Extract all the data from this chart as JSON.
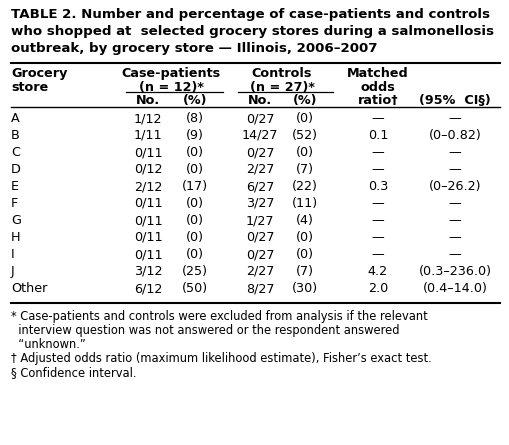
{
  "title_lines": [
    "TABLE 2. Number and percentage of case-patients and controls",
    "who shopped at  selected grocery stores during a salmonellosis",
    "outbreak, by grocery store — Illinois, 2006–2007"
  ],
  "rows": [
    [
      "A",
      "1/12",
      "(8)",
      "0/27",
      "(0)",
      "—",
      "—"
    ],
    [
      "B",
      "1/11",
      "(9)",
      "14/27",
      "(52)",
      "0.1",
      "(0–0.82)"
    ],
    [
      "C",
      "0/11",
      "(0)",
      "0/27",
      "(0)",
      "—",
      "—"
    ],
    [
      "D",
      "0/12",
      "(0)",
      "2/27",
      "(7)",
      "—",
      "—"
    ],
    [
      "E",
      "2/12",
      "(17)",
      "6/27",
      "(22)",
      "0.3",
      "(0–26.2)"
    ],
    [
      "F",
      "0/11",
      "(0)",
      "3/27",
      "(11)",
      "—",
      "—"
    ],
    [
      "G",
      "0/11",
      "(0)",
      "1/27",
      "(4)",
      "—",
      "—"
    ],
    [
      "H",
      "0/11",
      "(0)",
      "0/27",
      "(0)",
      "—",
      "—"
    ],
    [
      "I",
      "0/11",
      "(0)",
      "0/27",
      "(0)",
      "—",
      "—"
    ],
    [
      "J",
      "3/12",
      "(25)",
      "2/27",
      "(7)",
      "4.2",
      "(0.3–236.0)"
    ],
    [
      "Other",
      "6/12",
      "(50)",
      "8/27",
      "(30)",
      "2.0",
      "(0.4–14.0)"
    ]
  ],
  "footnotes": [
    [
      "* Case-patients and controls were excluded from analysis if the relevant",
      0.022
    ],
    [
      "  interview question was not answered or the respondent answered",
      0.022
    ],
    [
      "  “unknown.”",
      0.022
    ],
    [
      "† Adjusted odds ratio (maximum likelihood estimate), Fisher’s exact test.",
      0.022
    ],
    [
      "§ Confidence interval.",
      0.022
    ]
  ],
  "bg_color": "#ffffff",
  "title_fontsize": 9.6,
  "header_fontsize": 9.2,
  "body_fontsize": 9.2,
  "footnote_fontsize": 8.3,
  "fig_w": 5.09,
  "fig_h": 4.45,
  "dpi": 100
}
